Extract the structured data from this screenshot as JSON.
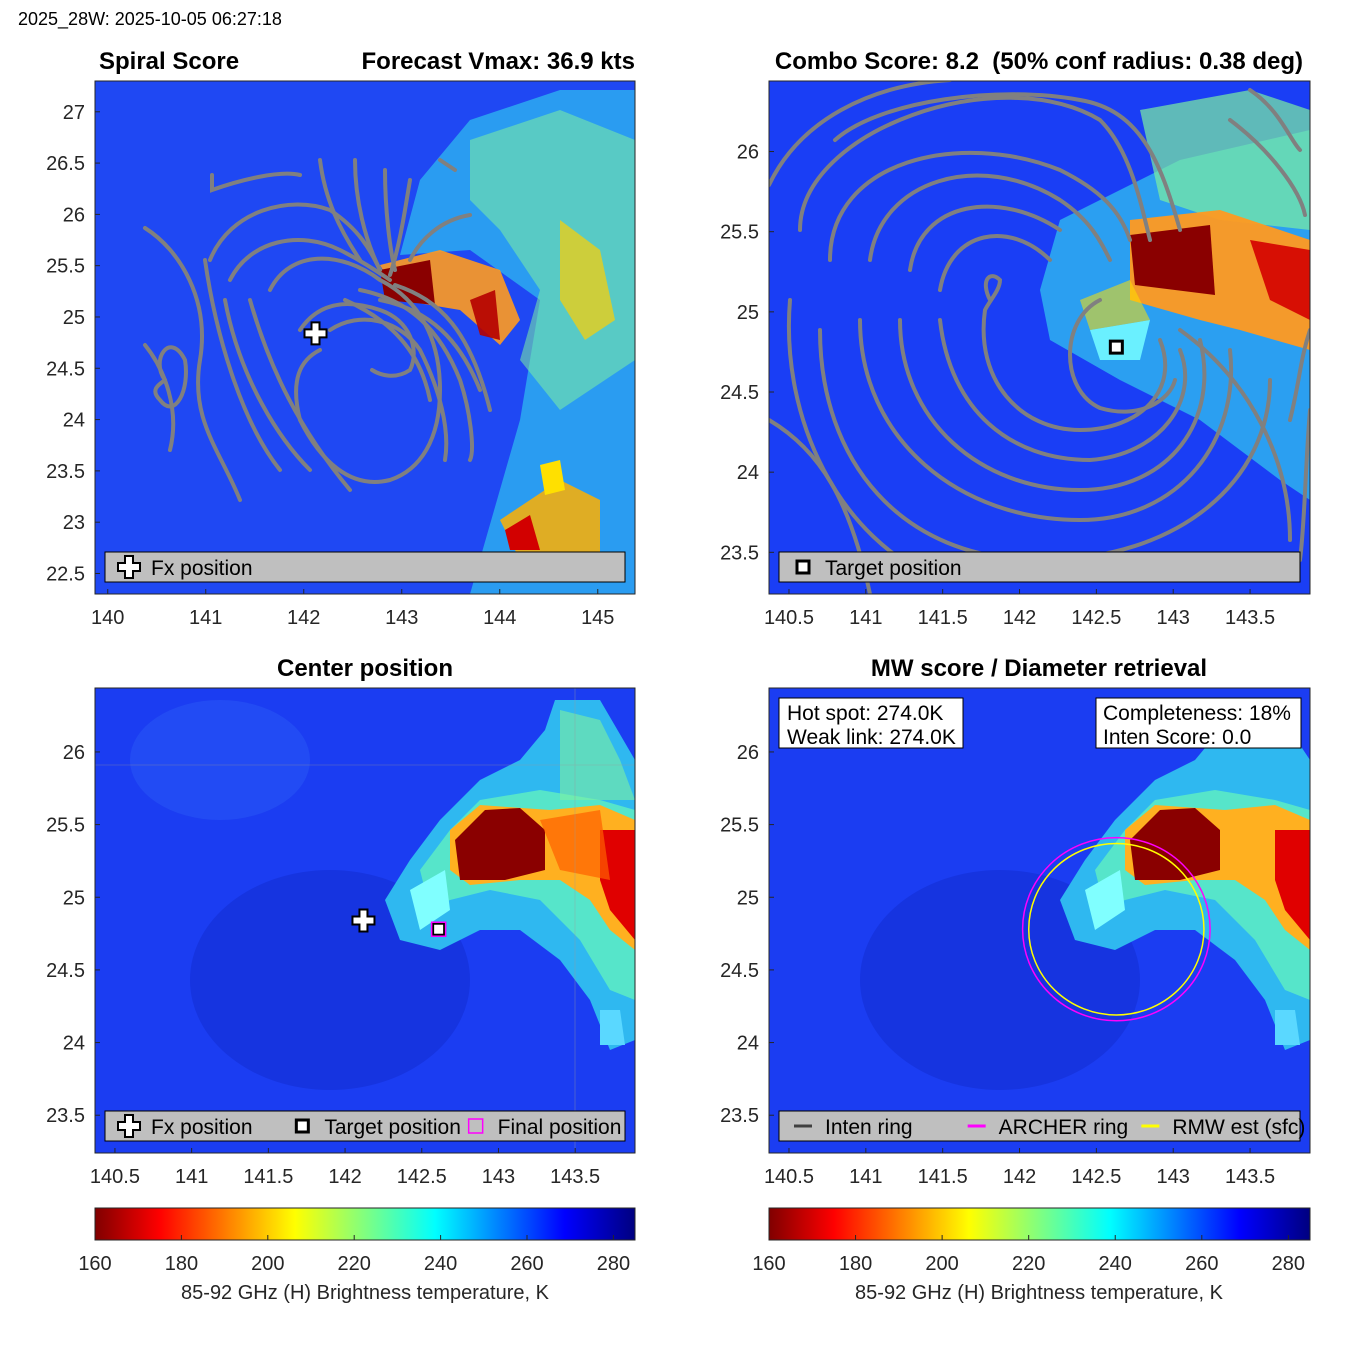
{
  "header": {
    "timestamp": "2025_28W: 2025-10-05 06:27:18"
  },
  "colors": {
    "contour": "#808080",
    "legend_bg": "#bfbfbf",
    "archer_ring": "#ff00ff",
    "rmw_ring": "#ffff00",
    "inten_ring": "#404040"
  },
  "chart_data": [
    {
      "id": "spiral",
      "type": "heatmap",
      "title_left": "Spiral Score",
      "title_right": "Forecast Vmax: 36.9 kts",
      "xlim": [
        139.87,
        145.38
      ],
      "ylim": [
        22.3,
        27.3
      ],
      "xticks": [
        "140",
        "141",
        "142",
        "143",
        "144",
        "145"
      ],
      "yticks": [
        "22.5",
        "23",
        "23.5",
        "24",
        "24.5",
        "25",
        "25.5",
        "26",
        "26.5",
        "27"
      ],
      "contours": true,
      "markers": [
        {
          "kind": "plus",
          "x": 142.12,
          "y": 24.84
        }
      ],
      "legend": [
        {
          "icon": "plus",
          "label": "Fx position"
        }
      ]
    },
    {
      "id": "combo",
      "type": "heatmap",
      "title": "Combo Score: 8.2  (50% conf radius: 0.38 deg)",
      "xlim": [
        140.37,
        143.89
      ],
      "ylim": [
        23.24,
        26.44
      ],
      "xticks": [
        "140.5",
        "141",
        "141.5",
        "142",
        "142.5",
        "143",
        "143.5"
      ],
      "yticks": [
        "23.5",
        "24",
        "24.5",
        "25",
        "25.5",
        "26"
      ],
      "contours": true,
      "markers": [
        {
          "kind": "square",
          "x": 142.63,
          "y": 24.78
        }
      ],
      "legend": [
        {
          "icon": "square",
          "label": "Target position"
        }
      ]
    },
    {
      "id": "center",
      "type": "heatmap",
      "title": "Center position",
      "xlim": [
        140.37,
        143.89
      ],
      "ylim": [
        23.24,
        26.44
      ],
      "xticks": [
        "140.5",
        "141",
        "141.5",
        "142",
        "142.5",
        "143",
        "143.5"
      ],
      "yticks": [
        "23.5",
        "24",
        "24.5",
        "25",
        "25.5",
        "26"
      ],
      "contours": false,
      "markers": [
        {
          "kind": "plus",
          "x": 142.12,
          "y": 24.84
        },
        {
          "kind": "square",
          "x": 142.61,
          "y": 24.78
        },
        {
          "kind": "magenta-square",
          "x": 142.61,
          "y": 24.78
        }
      ],
      "legend": [
        {
          "icon": "plus",
          "label": "Fx position"
        },
        {
          "icon": "square",
          "label": "Target position"
        },
        {
          "icon": "magenta-square",
          "label": "Final position"
        }
      ]
    },
    {
      "id": "mw",
      "type": "heatmap",
      "title": "MW score / Diameter retrieval",
      "xlim": [
        140.37,
        143.89
      ],
      "ylim": [
        23.24,
        26.44
      ],
      "xticks": [
        "140.5",
        "141",
        "141.5",
        "142",
        "142.5",
        "143",
        "143.5"
      ],
      "yticks": [
        "23.5",
        "24",
        "24.5",
        "25",
        "25.5",
        "26"
      ],
      "contours": false,
      "info_left": [
        "Hot spot: 274.0K",
        "Weak link: 274.0K"
      ],
      "info_right": [
        "Completeness: 18%",
        "Inten Score: 0.0"
      ],
      "rings": [
        {
          "name": "archer",
          "cx": 142.63,
          "cy": 24.78,
          "rx_deg": 0.61,
          "ry_deg": 0.63
        },
        {
          "name": "rmw",
          "cx": 142.63,
          "cy": 24.78,
          "rx_deg": 0.57,
          "ry_deg": 0.59
        }
      ],
      "legend": [
        {
          "icon": "line-dark",
          "label": "Inten ring"
        },
        {
          "icon": "line-magenta",
          "label": "ARCHER ring"
        },
        {
          "icon": "line-yellow",
          "label": "RMW est (sfc)"
        }
      ]
    }
  ],
  "colorbars": [
    {
      "ticks": [
        "160",
        "180",
        "200",
        "220",
        "240",
        "260",
        "280"
      ],
      "range": [
        160,
        285
      ],
      "label": "85-92 GHz (H) Brightness temperature, K"
    },
    {
      "ticks": [
        "160",
        "180",
        "200",
        "220",
        "240",
        "260",
        "280"
      ],
      "range": [
        160,
        285
      ],
      "label": "85-92 GHz (H) Brightness temperature, K"
    }
  ]
}
